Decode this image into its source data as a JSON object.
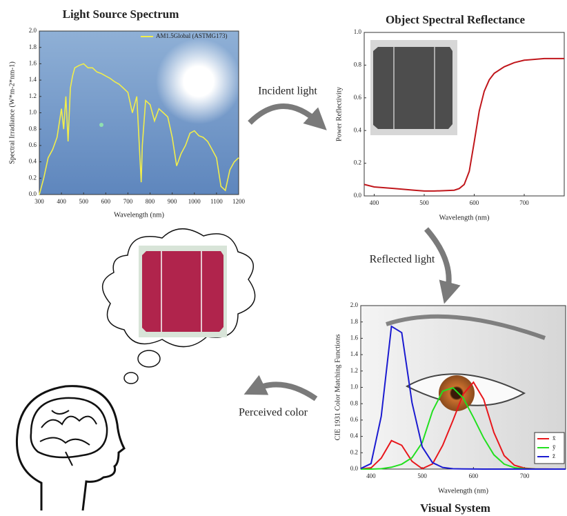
{
  "chart_data": [
    {
      "type": "line",
      "title": "Light Source Spectrum",
      "x_label": "Wavelength (nm)",
      "y_label": "Spectral Irradiance (W*m-2*nm-1)",
      "x": [
        300,
        320,
        340,
        360,
        380,
        400,
        410,
        420,
        430,
        440,
        450,
        460,
        480,
        500,
        520,
        540,
        560,
        580,
        600,
        620,
        640,
        660,
        680,
        700,
        720,
        740,
        760,
        765,
        780,
        800,
        820,
        840,
        860,
        880,
        900,
        920,
        940,
        960,
        980,
        1000,
        1020,
        1040,
        1060,
        1080,
        1100,
        1120,
        1140,
        1160,
        1180,
        1200
      ],
      "series": [
        {
          "name": "AM1.5Global (ASTMG173)",
          "color": "#f2ee4a",
          "values": [
            0,
            0.2,
            0.45,
            0.55,
            0.7,
            1.05,
            0.8,
            1.2,
            0.65,
            1.3,
            1.45,
            1.55,
            1.58,
            1.6,
            1.55,
            1.55,
            1.5,
            1.48,
            1.45,
            1.42,
            1.38,
            1.35,
            1.3,
            1.25,
            1.0,
            1.2,
            0.15,
            0.6,
            1.15,
            1.1,
            0.9,
            1.05,
            1.0,
            0.95,
            0.7,
            0.35,
            0.5,
            0.6,
            0.75,
            0.78,
            0.72,
            0.7,
            0.65,
            0.55,
            0.45,
            0.1,
            0.05,
            0.3,
            0.4,
            0.45
          ]
        }
      ],
      "xlim": [
        300,
        1200
      ],
      "xticks": [
        300,
        400,
        500,
        600,
        700,
        800,
        900,
        1000,
        1100,
        1200
      ],
      "ylim": [
        0,
        2.0
      ],
      "yticks": [
        {
          "value": 0,
          "label": "0.0"
        },
        0.2,
        0.4,
        0.6,
        0.8,
        {
          "value": 1,
          "label": "1.0"
        },
        1.2,
        1.4,
        1.6,
        1.8,
        {
          "value": 2,
          "label": "2.0"
        }
      ],
      "legend": "top-right"
    },
    {
      "type": "line",
      "title": "Object Spectral Reflectance",
      "x_label": "Wavelength (nm)",
      "y_label": "Power Reflectivity",
      "x": [
        380,
        400,
        420,
        440,
        460,
        480,
        500,
        520,
        540,
        560,
        570,
        580,
        590,
        600,
        610,
        620,
        630,
        640,
        660,
        680,
        700,
        740,
        780
      ],
      "series": [
        {
          "color": "#c0161b",
          "values": [
            0.07,
            0.055,
            0.05,
            0.045,
            0.04,
            0.035,
            0.03,
            0.03,
            0.032,
            0.035,
            0.045,
            0.07,
            0.15,
            0.33,
            0.52,
            0.64,
            0.71,
            0.75,
            0.79,
            0.815,
            0.83,
            0.84,
            0.84
          ]
        }
      ],
      "xlim": [
        380,
        780
      ],
      "xticks": [
        400,
        500,
        600,
        700
      ],
      "ylim": [
        0,
        1.0
      ],
      "yticks": [
        {
          "value": 0,
          "label": "0.0"
        },
        0.2,
        0.4,
        0.6,
        0.8,
        {
          "value": 1,
          "label": "1.0"
        }
      ]
    },
    {
      "type": "line",
      "title": "Visual System",
      "x_label": "Wavelength (nm)",
      "y_label": "CIE 1931 Color Matching Functions",
      "x": [
        380,
        400,
        420,
        440,
        460,
        480,
        500,
        520,
        540,
        560,
        580,
        600,
        620,
        640,
        660,
        680,
        700,
        720,
        740,
        760,
        780
      ],
      "series": [
        {
          "name": "x̄",
          "color": "#e8161b",
          "values": [
            0.0014,
            0.0143,
            0.1344,
            0.3483,
            0.2908,
            0.0956,
            0.0049,
            0.0633,
            0.2904,
            0.5945,
            0.9163,
            1.0622,
            0.8544,
            0.4479,
            0.1649,
            0.0468,
            0.0114,
            0.0029,
            0.0007,
            0.0002,
            0
          ]
        },
        {
          "name": "ȳ",
          "color": "#22e01f",
          "values": [
            0,
            0.0004,
            0.004,
            0.023,
            0.06,
            0.139,
            0.323,
            0.71,
            0.954,
            0.995,
            0.87,
            0.631,
            0.381,
            0.175,
            0.061,
            0.017,
            0.0041,
            0.001,
            0.0002,
            0.0001,
            0
          ]
        },
        {
          "name": "z̄",
          "color": "#1a1ad0",
          "values": [
            0.0065,
            0.0679,
            0.6456,
            1.7471,
            1.6692,
            0.813,
            0.272,
            0.0782,
            0.0203,
            0.0039,
            0.0017,
            0.0008,
            0.0002,
            0,
            0,
            0,
            0,
            0,
            0,
            0,
            0
          ]
        }
      ],
      "xlim": [
        380,
        780
      ],
      "xticks": [
        400,
        500,
        600,
        700
      ],
      "ylim": [
        0,
        2.0
      ],
      "yticks": [
        {
          "value": 0,
          "label": "0.0"
        },
        0.2,
        0.4,
        0.6,
        0.8,
        {
          "value": 1,
          "label": "1.0"
        },
        1.2,
        1.4,
        1.6,
        1.8,
        {
          "value": 2,
          "label": "2.0"
        }
      ],
      "legend": "bottom-right"
    }
  ],
  "annotations": [
    "Incident light",
    "Reflected light",
    "Perceived color"
  ]
}
